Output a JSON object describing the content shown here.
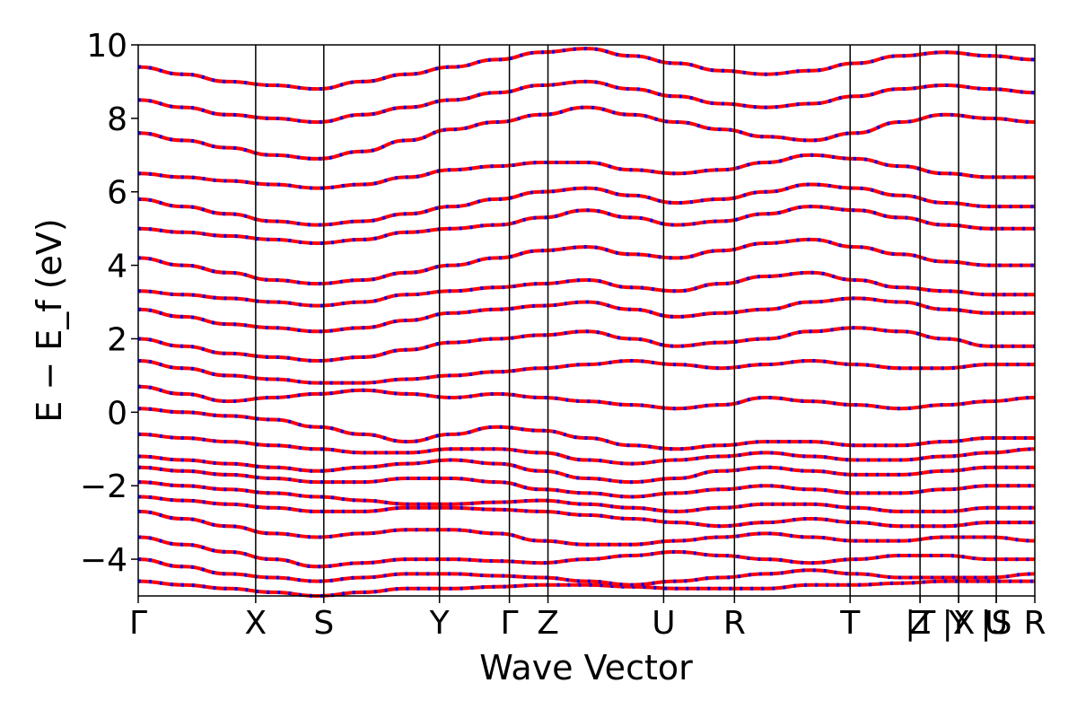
{
  "chart_data": {
    "type": "line",
    "title": "",
    "xlabel": "Wave Vector",
    "ylabel": "E − E_f (eV)",
    "ylim": [
      -5,
      10
    ],
    "grid": false,
    "legend": null,
    "yticks": [
      -4,
      -2,
      0,
      2,
      4,
      6,
      8,
      10
    ],
    "ytick_labels": [
      "−4",
      "−2",
      "0",
      "2",
      "4",
      "6",
      "8",
      "10"
    ],
    "kpoint_ticks": [
      {
        "label": "Γ",
        "x": 0.0
      },
      {
        "label": "X",
        "x": 0.131
      },
      {
        "label": "S",
        "x": 0.207
      },
      {
        "label": "Y",
        "x": 0.336
      },
      {
        "label": "Γ",
        "x": 0.414
      },
      {
        "label": "Z",
        "x": 0.457
      },
      {
        "label": "U",
        "x": 0.586
      },
      {
        "label": "R",
        "x": 0.665
      },
      {
        "label": "T",
        "x": 0.794
      },
      {
        "label": "Z",
        "x": 0.872
      },
      {
        "label": "|T",
        "x": 0.872
      },
      {
        "label": "Y",
        "x": 0.915
      },
      {
        "label": "|X",
        "x": 0.915
      },
      {
        "label": "U",
        "x": 0.957
      },
      {
        "label": "|S",
        "x": 0.957
      },
      {
        "label": "R",
        "x": 1.0
      }
    ],
    "section_breaks_x": [
      0.872,
      0.915,
      0.957
    ],
    "colors": {
      "band_red": "#ff0000",
      "band_blue": "#0000ff"
    },
    "series": [
      {
        "values": [
          -4.6,
          -4.7,
          -4.8,
          -4.9,
          -5.0,
          -4.9,
          -4.8,
          -4.8,
          -4.75,
          -4.7,
          -4.7,
          -4.75,
          -4.8,
          -4.8,
          -4.8,
          -4.7,
          -4.7,
          -4.65,
          -4.6,
          -4.6,
          -4.6
        ]
      },
      {
        "values": [
          -4.0,
          -4.2,
          -4.4,
          -4.5,
          -4.6,
          -4.5,
          -4.4,
          -4.4,
          -4.45,
          -4.5,
          -4.6,
          -4.7,
          -4.6,
          -4.5,
          -4.4,
          -4.3,
          -4.4,
          -4.5,
          -4.5,
          -4.5,
          -4.4
        ]
      },
      {
        "values": [
          -3.4,
          -3.6,
          -3.8,
          -4.0,
          -4.2,
          -4.1,
          -4.0,
          -4.0,
          -4.05,
          -4.1,
          -4.0,
          -3.9,
          -3.8,
          -3.9,
          -4.0,
          -4.1,
          -4.0,
          -3.9,
          -3.9,
          -4.0,
          -4.0
        ]
      },
      {
        "values": [
          -2.7,
          -2.9,
          -3.1,
          -3.3,
          -3.4,
          -3.3,
          -3.2,
          -3.2,
          -3.3,
          -3.5,
          -3.6,
          -3.6,
          -3.5,
          -3.4,
          -3.3,
          -3.4,
          -3.5,
          -3.5,
          -3.4,
          -3.4,
          -3.5
        ]
      },
      {
        "values": [
          -2.3,
          -2.4,
          -2.5,
          -2.6,
          -2.7,
          -2.7,
          -2.6,
          -2.6,
          -2.65,
          -2.7,
          -2.8,
          -2.9,
          -3.0,
          -3.1,
          -3.0,
          -2.9,
          -3.0,
          -3.1,
          -3.1,
          -3.0,
          -3.0
        ]
      },
      {
        "values": [
          -1.9,
          -2.0,
          -2.1,
          -2.2,
          -2.3,
          -2.4,
          -2.5,
          -2.5,
          -2.45,
          -2.4,
          -2.5,
          -2.6,
          -2.7,
          -2.6,
          -2.5,
          -2.5,
          -2.6,
          -2.7,
          -2.7,
          -2.6,
          -2.6
        ]
      },
      {
        "values": [
          -1.5,
          -1.6,
          -1.7,
          -1.8,
          -1.9,
          -1.9,
          -1.8,
          -1.8,
          -1.9,
          -2.1,
          -2.2,
          -2.3,
          -2.2,
          -2.1,
          -2.0,
          -2.1,
          -2.2,
          -2.2,
          -2.1,
          -2.0,
          -2.0
        ]
      },
      {
        "values": [
          -1.2,
          -1.3,
          -1.4,
          -1.5,
          -1.6,
          -1.5,
          -1.4,
          -1.3,
          -1.4,
          -1.6,
          -1.8,
          -1.9,
          -1.8,
          -1.6,
          -1.5,
          -1.6,
          -1.7,
          -1.7,
          -1.6,
          -1.5,
          -1.5
        ]
      },
      {
        "values": [
          -0.6,
          -0.7,
          -0.8,
          -0.9,
          -1.0,
          -1.1,
          -1.1,
          -1.0,
          -1.0,
          -1.1,
          -1.3,
          -1.4,
          -1.3,
          -1.2,
          -1.1,
          -1.2,
          -1.3,
          -1.3,
          -1.2,
          -1.1,
          -1.0
        ]
      },
      {
        "values": [
          0.1,
          0.0,
          -0.1,
          -0.2,
          -0.4,
          -0.6,
          -0.8,
          -0.6,
          -0.4,
          -0.5,
          -0.7,
          -0.9,
          -1.0,
          -0.9,
          -0.8,
          -0.8,
          -0.9,
          -0.9,
          -0.8,
          -0.7,
          -0.7
        ]
      },
      {
        "values": [
          0.7,
          0.5,
          0.3,
          0.4,
          0.5,
          0.6,
          0.5,
          0.4,
          0.5,
          0.4,
          0.3,
          0.2,
          0.1,
          0.2,
          0.4,
          0.3,
          0.2,
          0.1,
          0.2,
          0.3,
          0.4
        ]
      },
      {
        "values": [
          1.4,
          1.2,
          1.0,
          0.9,
          0.8,
          0.8,
          0.9,
          1.0,
          1.1,
          1.2,
          1.3,
          1.4,
          1.3,
          1.2,
          1.3,
          1.4,
          1.3,
          1.2,
          1.2,
          1.3,
          1.3
        ]
      },
      {
        "values": [
          2.0,
          1.8,
          1.6,
          1.5,
          1.4,
          1.5,
          1.7,
          1.9,
          2.0,
          2.1,
          2.2,
          2.0,
          1.8,
          1.9,
          2.0,
          2.2,
          2.3,
          2.2,
          2.0,
          1.8,
          1.8
        ]
      },
      {
        "values": [
          2.8,
          2.6,
          2.4,
          2.3,
          2.2,
          2.3,
          2.5,
          2.7,
          2.8,
          2.9,
          3.0,
          2.8,
          2.6,
          2.7,
          2.8,
          3.0,
          3.1,
          3.0,
          2.8,
          2.7,
          2.7
        ]
      },
      {
        "values": [
          3.3,
          3.2,
          3.1,
          3.0,
          2.9,
          3.0,
          3.2,
          3.3,
          3.4,
          3.5,
          3.6,
          3.4,
          3.3,
          3.5,
          3.7,
          3.8,
          3.6,
          3.4,
          3.3,
          3.2,
          3.2
        ]
      },
      {
        "values": [
          4.2,
          4.0,
          3.8,
          3.6,
          3.5,
          3.6,
          3.8,
          4.0,
          4.2,
          4.4,
          4.5,
          4.3,
          4.2,
          4.4,
          4.6,
          4.7,
          4.5,
          4.3,
          4.1,
          4.0,
          4.0
        ]
      },
      {
        "values": [
          5.0,
          4.9,
          4.8,
          4.7,
          4.6,
          4.7,
          4.9,
          5.0,
          5.1,
          5.3,
          5.5,
          5.3,
          5.1,
          5.2,
          5.4,
          5.6,
          5.5,
          5.3,
          5.1,
          5.0,
          5.0
        ]
      },
      {
        "values": [
          5.8,
          5.6,
          5.4,
          5.2,
          5.1,
          5.2,
          5.4,
          5.6,
          5.8,
          6.0,
          6.1,
          5.9,
          5.7,
          5.8,
          6.0,
          6.2,
          6.1,
          5.9,
          5.7,
          5.6,
          5.6
        ]
      },
      {
        "values": [
          6.5,
          6.4,
          6.3,
          6.2,
          6.1,
          6.2,
          6.4,
          6.6,
          6.7,
          6.8,
          6.8,
          6.6,
          6.5,
          6.6,
          6.8,
          7.0,
          6.9,
          6.7,
          6.5,
          6.4,
          6.4
        ]
      },
      {
        "values": [
          7.6,
          7.4,
          7.2,
          7.0,
          6.9,
          7.1,
          7.4,
          7.7,
          7.9,
          8.1,
          8.3,
          8.1,
          7.9,
          7.7,
          7.5,
          7.4,
          7.6,
          7.9,
          8.1,
          8.0,
          7.9
        ]
      },
      {
        "values": [
          8.5,
          8.3,
          8.1,
          8.0,
          7.9,
          8.1,
          8.3,
          8.5,
          8.7,
          8.9,
          9.0,
          8.8,
          8.6,
          8.4,
          8.3,
          8.4,
          8.6,
          8.8,
          8.9,
          8.8,
          8.7
        ]
      },
      {
        "values": [
          9.4,
          9.2,
          9.0,
          8.9,
          8.8,
          9.0,
          9.2,
          9.4,
          9.6,
          9.8,
          9.9,
          9.7,
          9.5,
          9.3,
          9.2,
          9.3,
          9.5,
          9.7,
          9.8,
          9.7,
          9.6
        ]
      }
    ]
  }
}
